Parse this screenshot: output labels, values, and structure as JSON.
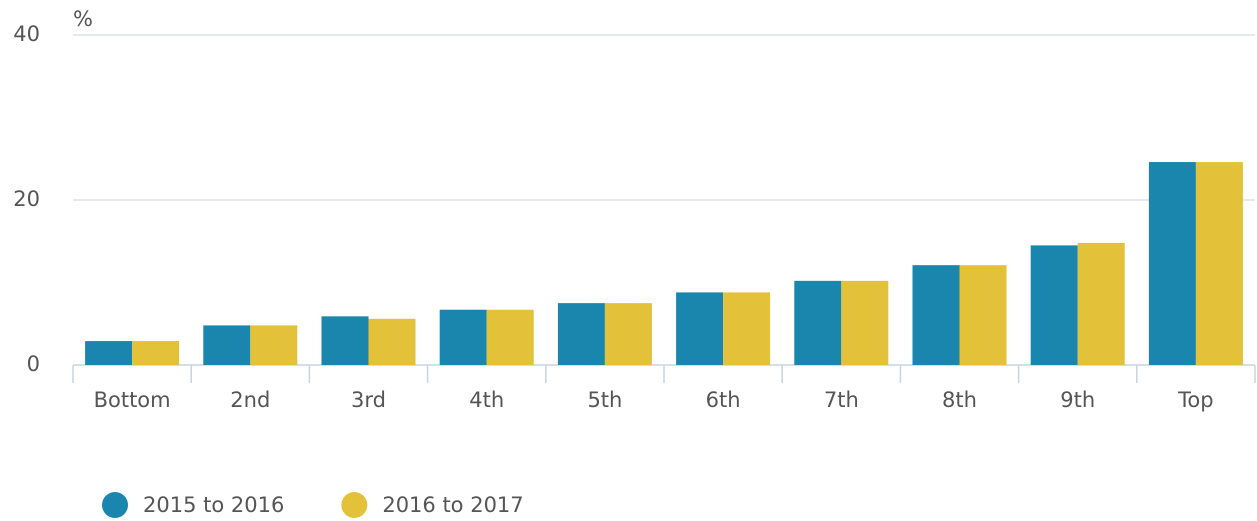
{
  "chart_data": {
    "type": "bar",
    "y_unit": "%",
    "categories": [
      "Bottom",
      "2nd",
      "3rd",
      "4th",
      "5th",
      "6th",
      "7th",
      "8th",
      "9th",
      "Top"
    ],
    "series": [
      {
        "name": "2015 to 2016",
        "color": "#1a86ae",
        "values": [
          2.9,
          4.8,
          5.9,
          6.7,
          7.5,
          8.8,
          10.2,
          12.1,
          14.5,
          24.6
        ]
      },
      {
        "name": "2016 to 2017",
        "color": "#e3c23a",
        "values": [
          2.9,
          4.8,
          5.6,
          6.7,
          7.5,
          8.8,
          10.2,
          12.1,
          14.8,
          24.6
        ]
      }
    ],
    "ylim": [
      0,
      40
    ],
    "yticks": [
      0,
      20,
      40
    ],
    "grid": true,
    "legend": "bottom"
  }
}
